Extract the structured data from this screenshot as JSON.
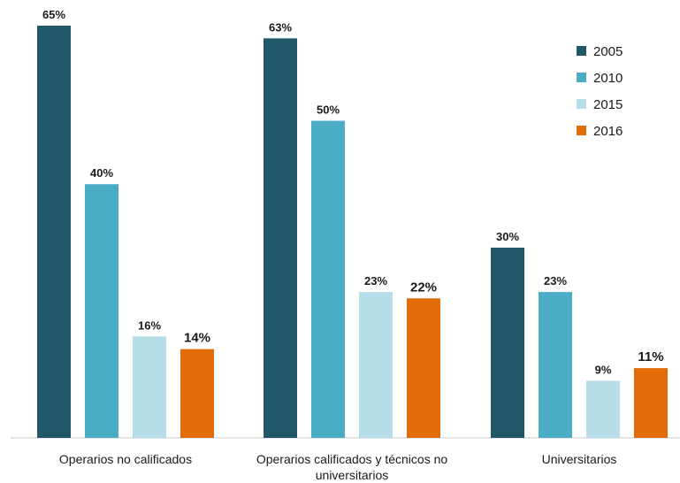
{
  "chart_data": {
    "type": "bar",
    "categories": [
      [
        "Operarios no calificados"
      ],
      [
        "Operarios calificados y técnicos no",
        "universitarios"
      ],
      [
        "Universitarios"
      ]
    ],
    "series": [
      {
        "name": "2005",
        "color": "#215867",
        "values": [
          65,
          63,
          30
        ],
        "labels": [
          "65%",
          "63%",
          "30%"
        ]
      },
      {
        "name": "2010",
        "color": "#4bacc6",
        "values": [
          40,
          50,
          23
        ],
        "labels": [
          "40%",
          "50%",
          "23%"
        ]
      },
      {
        "name": "2015",
        "color": "#b7dee8",
        "values": [
          16,
          23,
          9
        ],
        "labels": [
          "16%",
          "23%",
          "9%"
        ]
      },
      {
        "name": "2016",
        "color": "#e36c09",
        "values": [
          14,
          22,
          11
        ],
        "labels": [
          "14%",
          "22%",
          "11%"
        ],
        "label_color": "#e36c09"
      }
    ],
    "ylim": [
      0,
      65
    ],
    "grid": false,
    "legend_position": "top-right",
    "title": "",
    "xlabel": "",
    "ylabel": ""
  }
}
